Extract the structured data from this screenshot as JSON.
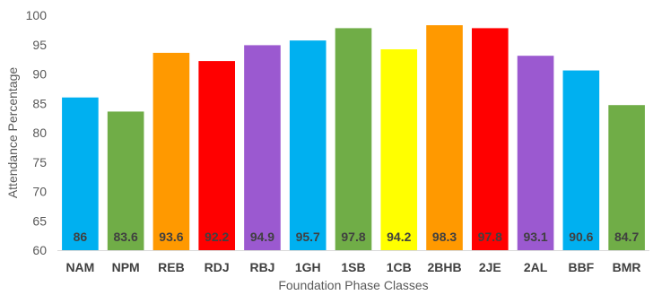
{
  "chart_data": {
    "type": "bar",
    "title": "",
    "xlabel": "Foundation Phase Classes",
    "ylabel": "Attendance Percentage",
    "ylim": [
      60,
      100
    ],
    "yticks": [
      60,
      65,
      70,
      75,
      80,
      85,
      90,
      95,
      100
    ],
    "grid": false,
    "categories": [
      "NAM",
      "NPM",
      "REB",
      "RDJ",
      "RBJ",
      "1GH",
      "1SB",
      "1CB",
      "2BHB",
      "2JE",
      "2AL",
      "BBF",
      "BMR"
    ],
    "values": [
      86,
      83.6,
      93.6,
      92.2,
      94.9,
      95.7,
      97.8,
      94.2,
      98.3,
      97.8,
      93.1,
      90.6,
      84.7
    ],
    "data_labels": [
      "86",
      "83.6",
      "93.6",
      "92.2",
      "94.9",
      "95.7",
      "97.8",
      "94.2",
      "98.3",
      "97.8",
      "93.1",
      "90.6",
      "84.7"
    ],
    "colors": [
      "#00B0F0",
      "#70AD47",
      "#FF9900",
      "#FF0000",
      "#9B59D0",
      "#00B0F0",
      "#70AD47",
      "#FFFF00",
      "#FF9900",
      "#FF0000",
      "#9B59D0",
      "#00B0F0",
      "#70AD47"
    ],
    "axis_color": "#D9D9D9"
  }
}
